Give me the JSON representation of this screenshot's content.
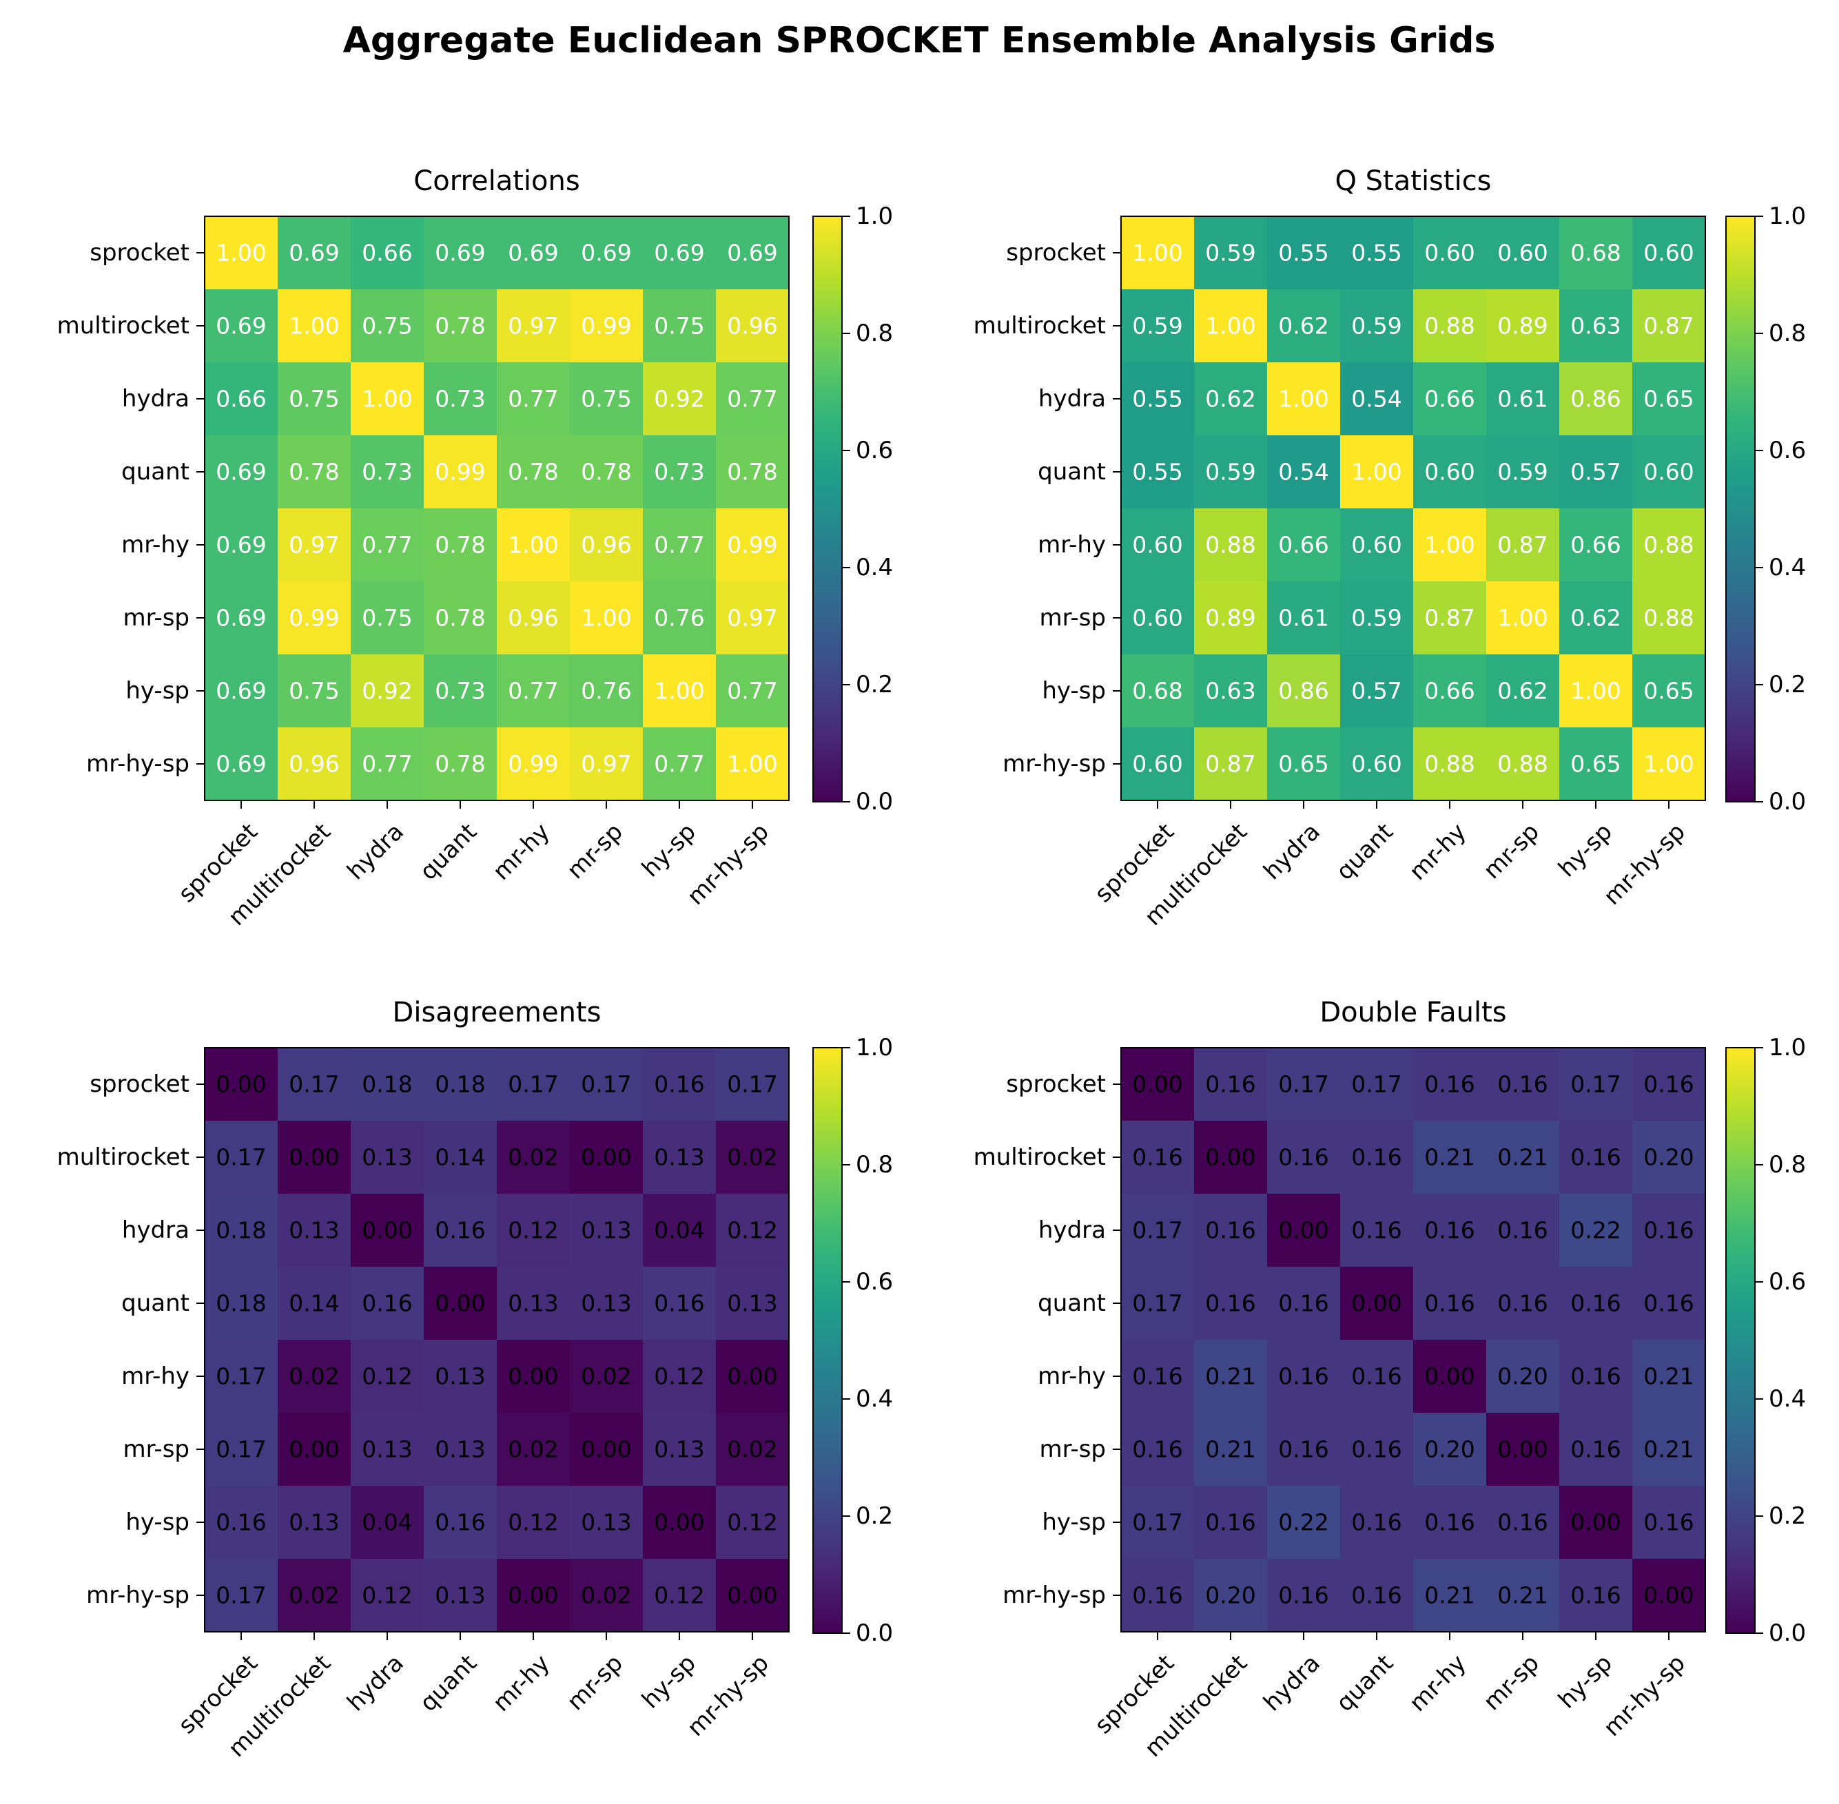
{
  "figure_title": "Aggregate Euclidean SPROCKET Ensemble Analysis Grids",
  "colormap": "viridis",
  "colors": {
    "background": "#ffffff",
    "axis": "#000000",
    "light_text": "#ffffff",
    "dark_text": "#000000"
  },
  "chart_data": [
    {
      "type": "heatmap",
      "title": "Correlations",
      "labels": [
        "sprocket",
        "multirocket",
        "hydra",
        "quant",
        "mr-hy",
        "mr-sp",
        "hy-sp",
        "mr-hy-sp"
      ],
      "values": [
        [
          1.0,
          0.69,
          0.66,
          0.69,
          0.69,
          0.69,
          0.69,
          0.69
        ],
        [
          0.69,
          1.0,
          0.75,
          0.78,
          0.97,
          0.99,
          0.75,
          0.96
        ],
        [
          0.66,
          0.75,
          1.0,
          0.73,
          0.77,
          0.75,
          0.92,
          0.77
        ],
        [
          0.69,
          0.78,
          0.73,
          0.99,
          0.78,
          0.78,
          0.73,
          0.78
        ],
        [
          0.69,
          0.97,
          0.77,
          0.78,
          1.0,
          0.96,
          0.77,
          0.99
        ],
        [
          0.69,
          0.99,
          0.75,
          0.78,
          0.96,
          1.0,
          0.76,
          0.97
        ],
        [
          0.69,
          0.75,
          0.92,
          0.73,
          0.77,
          0.76,
          1.0,
          0.77
        ],
        [
          0.69,
          0.96,
          0.77,
          0.78,
          0.99,
          0.97,
          0.77,
          1.0
        ]
      ],
      "value_format": "0.00",
      "cell_text_color": "white",
      "colorbar": {
        "range": [
          0.0,
          1.0
        ],
        "ticks": [
          "0.0",
          "0.2",
          "0.4",
          "0.6",
          "0.8",
          "1.0"
        ]
      }
    },
    {
      "type": "heatmap",
      "title": "Q Statistics",
      "labels": [
        "sprocket",
        "multirocket",
        "hydra",
        "quant",
        "mr-hy",
        "mr-sp",
        "hy-sp",
        "mr-hy-sp"
      ],
      "values": [
        [
          1.0,
          0.59,
          0.55,
          0.55,
          0.6,
          0.6,
          0.68,
          0.6
        ],
        [
          0.59,
          1.0,
          0.62,
          0.59,
          0.88,
          0.89,
          0.63,
          0.87
        ],
        [
          0.55,
          0.62,
          1.0,
          0.54,
          0.66,
          0.61,
          0.86,
          0.65
        ],
        [
          0.55,
          0.59,
          0.54,
          1.0,
          0.6,
          0.59,
          0.57,
          0.6
        ],
        [
          0.6,
          0.88,
          0.66,
          0.6,
          1.0,
          0.87,
          0.66,
          0.88
        ],
        [
          0.6,
          0.89,
          0.61,
          0.59,
          0.87,
          1.0,
          0.62,
          0.88
        ],
        [
          0.68,
          0.63,
          0.86,
          0.57,
          0.66,
          0.62,
          1.0,
          0.65
        ],
        [
          0.6,
          0.87,
          0.65,
          0.6,
          0.88,
          0.88,
          0.65,
          1.0
        ]
      ],
      "value_format": "0.00",
      "cell_text_color": "white",
      "colorbar": {
        "range": [
          0.0,
          1.0
        ],
        "ticks": [
          "0.0",
          "0.2",
          "0.4",
          "0.6",
          "0.8",
          "1.0"
        ]
      }
    },
    {
      "type": "heatmap",
      "title": "Disagreements",
      "labels": [
        "sprocket",
        "multirocket",
        "hydra",
        "quant",
        "mr-hy",
        "mr-sp",
        "hy-sp",
        "mr-hy-sp"
      ],
      "values": [
        [
          0.0,
          0.17,
          0.18,
          0.18,
          0.17,
          0.17,
          0.16,
          0.17
        ],
        [
          0.17,
          0.0,
          0.13,
          0.14,
          0.02,
          0.0,
          0.13,
          0.02
        ],
        [
          0.18,
          0.13,
          0.0,
          0.16,
          0.12,
          0.13,
          0.04,
          0.12
        ],
        [
          0.18,
          0.14,
          0.16,
          0.0,
          0.13,
          0.13,
          0.16,
          0.13
        ],
        [
          0.17,
          0.02,
          0.12,
          0.13,
          0.0,
          0.02,
          0.12,
          0.0
        ],
        [
          0.17,
          0.0,
          0.13,
          0.13,
          0.02,
          0.0,
          0.13,
          0.02
        ],
        [
          0.16,
          0.13,
          0.04,
          0.16,
          0.12,
          0.13,
          0.0,
          0.12
        ],
        [
          0.17,
          0.02,
          0.12,
          0.13,
          0.0,
          0.02,
          0.12,
          0.0
        ]
      ],
      "value_format": "0.00",
      "cell_text_color": "black",
      "colorbar": {
        "range": [
          0.0,
          1.0
        ],
        "ticks": [
          "0.0",
          "0.2",
          "0.4",
          "0.6",
          "0.8",
          "1.0"
        ]
      }
    },
    {
      "type": "heatmap",
      "title": "Double Faults",
      "labels": [
        "sprocket",
        "multirocket",
        "hydra",
        "quant",
        "mr-hy",
        "mr-sp",
        "hy-sp",
        "mr-hy-sp"
      ],
      "values": [
        [
          0.0,
          0.16,
          0.17,
          0.17,
          0.16,
          0.16,
          0.17,
          0.16
        ],
        [
          0.16,
          0.0,
          0.16,
          0.16,
          0.21,
          0.21,
          0.16,
          0.2
        ],
        [
          0.17,
          0.16,
          0.0,
          0.16,
          0.16,
          0.16,
          0.22,
          0.16
        ],
        [
          0.17,
          0.16,
          0.16,
          0.0,
          0.16,
          0.16,
          0.16,
          0.16
        ],
        [
          0.16,
          0.21,
          0.16,
          0.16,
          0.0,
          0.2,
          0.16,
          0.21
        ],
        [
          0.16,
          0.21,
          0.16,
          0.16,
          0.2,
          0.0,
          0.16,
          0.21
        ],
        [
          0.17,
          0.16,
          0.22,
          0.16,
          0.16,
          0.16,
          0.0,
          0.16
        ],
        [
          0.16,
          0.2,
          0.16,
          0.16,
          0.21,
          0.21,
          0.16,
          0.0
        ]
      ],
      "value_format": "0.00",
      "cell_text_color": "black",
      "colorbar": {
        "range": [
          0.0,
          1.0
        ],
        "ticks": [
          "0.0",
          "0.2",
          "0.4",
          "0.6",
          "0.8",
          "1.0"
        ]
      }
    }
  ]
}
